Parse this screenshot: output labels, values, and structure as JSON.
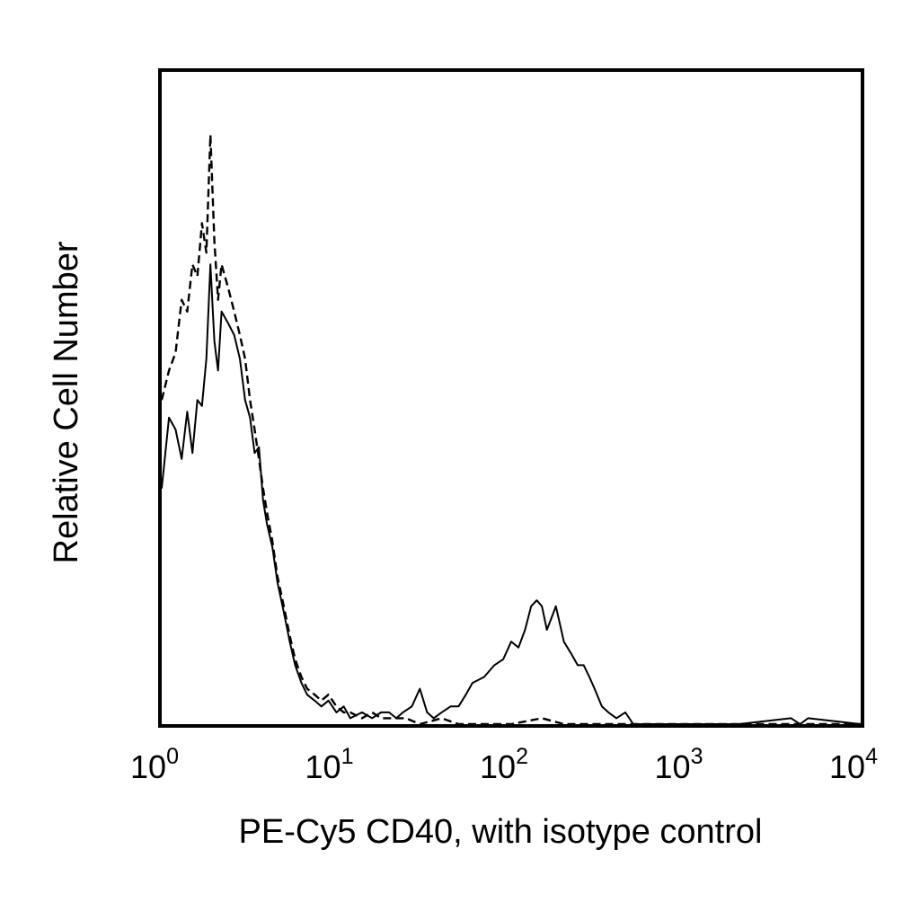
{
  "chart_data": {
    "type": "line",
    "xscale": "log",
    "xlim": [
      1,
      10000
    ],
    "ylim": [
      0,
      1
    ],
    "grid": false,
    "legend": "none",
    "xlabel": "PE-Cy5 CD40, with isotype control",
    "ylabel": "Relative Cell Number",
    "x_ticks": [
      {
        "base": "10",
        "exp": "0",
        "value": 1
      },
      {
        "base": "10",
        "exp": "1",
        "value": 10
      },
      {
        "base": "10",
        "exp": "2",
        "value": 100
      },
      {
        "base": "10",
        "exp": "3",
        "value": 1000
      },
      {
        "base": "10",
        "exp": "4",
        "value": 10000
      }
    ],
    "series": [
      {
        "style": "solid",
        "color": "#000000",
        "x": [
          1.0,
          1.1,
          1.2,
          1.3,
          1.4,
          1.5,
          1.6,
          1.7,
          1.8,
          1.9,
          2.0,
          2.1,
          2.2,
          2.4,
          2.6,
          2.8,
          3.0,
          3.2,
          3.4,
          3.6,
          3.8,
          4.0,
          4.3,
          4.6,
          5.0,
          5.4,
          5.8,
          6.3,
          6.8,
          7.5,
          8.2,
          9.0,
          10,
          11,
          12,
          14,
          16,
          18,
          20,
          22,
          24,
          27,
          30,
          33,
          36,
          40,
          45,
          50,
          55,
          60,
          70,
          80,
          90,
          100,
          110,
          120,
          130,
          140,
          150,
          160,
          170,
          180,
          190,
          200,
          220,
          240,
          260,
          280,
          300,
          330,
          360,
          400,
          450,
          500,
          600,
          800,
          1000,
          2000,
          4000,
          4500,
          5000,
          10000
        ],
        "y": [
          0.4,
          0.52,
          0.5,
          0.45,
          0.53,
          0.46,
          0.55,
          0.54,
          0.62,
          0.78,
          0.65,
          0.6,
          0.7,
          0.68,
          0.66,
          0.62,
          0.55,
          0.52,
          0.46,
          0.47,
          0.38,
          0.34,
          0.3,
          0.24,
          0.19,
          0.14,
          0.1,
          0.07,
          0.05,
          0.04,
          0.03,
          0.04,
          0.02,
          0.03,
          0.01,
          0.02,
          0.01,
          0.02,
          0.02,
          0.01,
          0.02,
          0.03,
          0.06,
          0.02,
          0.01,
          0.02,
          0.03,
          0.03,
          0.05,
          0.07,
          0.08,
          0.1,
          0.11,
          0.14,
          0.13,
          0.16,
          0.2,
          0.21,
          0.2,
          0.16,
          0.18,
          0.2,
          0.17,
          0.14,
          0.12,
          0.1,
          0.1,
          0.08,
          0.06,
          0.03,
          0.02,
          0.01,
          0.02,
          0.0,
          0.0,
          0.0,
          0.0,
          0.0,
          0.01,
          0.0,
          0.01,
          0.0
        ]
      },
      {
        "style": "dashed",
        "color": "#000000",
        "x": [
          1.0,
          1.1,
          1.2,
          1.3,
          1.4,
          1.5,
          1.6,
          1.7,
          1.8,
          1.9,
          2.0,
          2.1,
          2.2,
          2.4,
          2.6,
          2.8,
          3.0,
          3.2,
          3.4,
          3.6,
          3.8,
          4.0,
          4.3,
          4.6,
          5.0,
          5.4,
          5.8,
          6.3,
          6.8,
          7.5,
          8.2,
          9.0,
          10,
          11,
          12,
          14,
          16,
          18,
          20,
          25,
          30,
          40,
          50,
          60,
          80,
          100,
          150,
          200,
          300,
          500,
          1000,
          10000
        ],
        "y": [
          0.55,
          0.6,
          0.63,
          0.72,
          0.7,
          0.78,
          0.76,
          0.85,
          0.8,
          1.0,
          0.82,
          0.72,
          0.78,
          0.74,
          0.7,
          0.66,
          0.62,
          0.55,
          0.5,
          0.45,
          0.4,
          0.36,
          0.31,
          0.25,
          0.2,
          0.15,
          0.11,
          0.08,
          0.06,
          0.05,
          0.04,
          0.05,
          0.03,
          0.02,
          0.02,
          0.01,
          0.02,
          0.01,
          0.01,
          0.01,
          0.0,
          0.01,
          0.0,
          0.0,
          0.0,
          0.0,
          0.01,
          0.0,
          0.0,
          0.0,
          0.0,
          0.0
        ]
      }
    ]
  }
}
